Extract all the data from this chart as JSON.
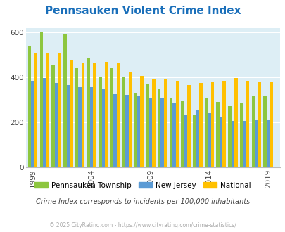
{
  "title": "Pennsauken Violent Crime Index",
  "title_color": "#1a6fba",
  "years": [
    1999,
    2000,
    2001,
    2002,
    2003,
    2004,
    2005,
    2006,
    2007,
    2008,
    2009,
    2010,
    2011,
    2012,
    2013,
    2014,
    2015,
    2016,
    2017,
    2018,
    2019
  ],
  "pennsauken": [
    540,
    600,
    455,
    590,
    440,
    485,
    400,
    440,
    400,
    330,
    370,
    345,
    310,
    295,
    230,
    305,
    290,
    270,
    285,
    315,
    315
  ],
  "new_jersey": [
    385,
    395,
    375,
    365,
    355,
    355,
    350,
    325,
    320,
    315,
    305,
    310,
    285,
    230,
    255,
    240,
    225,
    205,
    205,
    210,
    210
  ],
  "national": [
    505,
    505,
    505,
    475,
    465,
    465,
    470,
    465,
    425,
    405,
    390,
    390,
    385,
    365,
    375,
    380,
    385,
    395,
    385,
    380,
    380
  ],
  "pennsauken_color": "#8dc63f",
  "nj_color": "#5b9bd5",
  "national_color": "#ffc000",
  "plot_bg": "#ddeef5",
  "ylim": [
    0,
    620
  ],
  "yticks": [
    0,
    200,
    400,
    600
  ],
  "subtitle": "Crime Index corresponds to incidents per 100,000 inhabitants",
  "subtitle_color": "#444444",
  "copyright": "© 2025 CityRating.com - https://www.cityrating.com/crime-statistics/",
  "copyright_color": "#aaaaaa",
  "legend_labels": [
    "Pennsauken Township",
    "New Jersey",
    "National"
  ]
}
